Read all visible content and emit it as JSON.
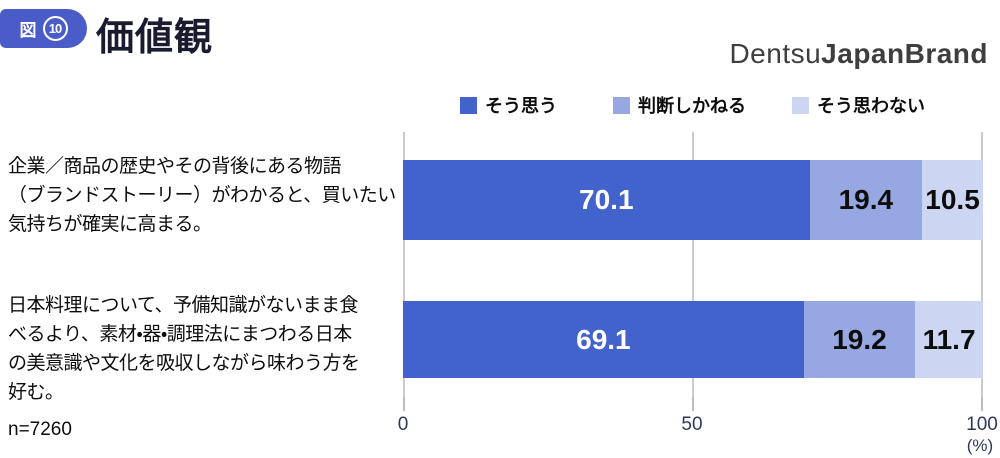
{
  "header": {
    "figure_badge": {
      "prefix": "図",
      "number": "10"
    },
    "title": "価値観",
    "logo": {
      "light": "Dentsu",
      "bold": "JapanBrand"
    }
  },
  "sample_size": "n=7260",
  "labels": {
    "rows_multiline": [
      "企業／商品の歴史やその背後にある物語\n（ブランドストーリー）がわかると、買いたい\n気持ちが確実に高まる。",
      "日本料理について、予備知識がないまま食\nべるより、素材・器・調理法にまつわる日本\nの美意識や文化を吸収しながら味わう方を\n好む。"
    ]
  },
  "chart_data": {
    "type": "bar",
    "orientation": "horizontal",
    "stacked": true,
    "title": "価値観",
    "categories": [
      "企業／商品の歴史やその背後にある物語（ブランドストーリー）がわかると、買いたい気持ちが確実に高まる。",
      "日本料理について、予備知識がないまま食べるより、素材・器・調理法にまつわる日本の美意識や文化を吸収しながら味わう方を好む。"
    ],
    "series": [
      {
        "name": "そう思う",
        "color": "#4263cb",
        "values": [
          70.1,
          69.1
        ]
      },
      {
        "name": "判断しかねる",
        "color": "#96a7e2",
        "values": [
          19.4,
          19.2
        ]
      },
      {
        "name": "そう思わない",
        "color": "#ccd5f1",
        "values": [
          10.5,
          11.7
        ]
      }
    ],
    "xlim": [
      0,
      100
    ],
    "xticks": [
      "0",
      "50",
      "100"
    ],
    "unit_label": "(%)",
    "legend_position": "top",
    "grid": "vertical",
    "sample_note": "n=7260"
  }
}
